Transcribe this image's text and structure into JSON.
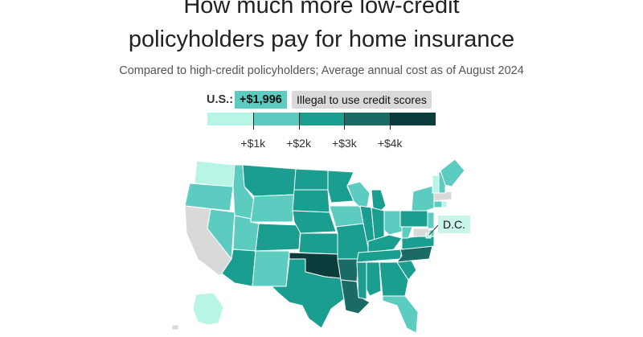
{
  "title_line1": "How much more low-credit",
  "title_line2": "policyholders pay for home insurance",
  "subtitle": "Compared to high-credit policyholders; Average annual cost as of August 2024",
  "us_label": "U.S.:",
  "us_value": "+$1,996",
  "illegal_label": "Illegal to use credit scores",
  "dc_label": "D.C.",
  "colors": {
    "scale": [
      "#b8f5e6",
      "#5ccbc0",
      "#1a9e90",
      "#1a6b66",
      "#0d3c3c"
    ],
    "illegal": "#d9d9d9",
    "border": "#ffffff"
  },
  "scale_ticks": [
    {
      "label": "+$1k",
      "value": 1000
    },
    {
      "label": "+$2k",
      "value": 2000
    },
    {
      "label": "+$3k",
      "value": 3000
    },
    {
      "label": "+$4k",
      "value": 4000
    }
  ],
  "chart_data": {
    "type": "choropleth",
    "title": "How much more low-credit policyholders pay for home insurance",
    "subtitle": "Compared to high-credit policyholders; Average annual cost as of August 2024",
    "national_value": "+$1,996",
    "legend_bins": [
      "< +$1k",
      "+$1k – +$2k",
      "+$2k – +$3k",
      "+$3k – +$4k",
      "> +$4k",
      "Illegal to use credit scores"
    ],
    "regions": [
      {
        "state": "WA",
        "bin": 0
      },
      {
        "state": "OR",
        "bin": 1
      },
      {
        "state": "CA",
        "bin": "illegal"
      },
      {
        "state": "NV",
        "bin": 1
      },
      {
        "state": "ID",
        "bin": 1
      },
      {
        "state": "MT",
        "bin": 2
      },
      {
        "state": "WY",
        "bin": 1
      },
      {
        "state": "UT",
        "bin": 1
      },
      {
        "state": "AZ",
        "bin": 2
      },
      {
        "state": "CO",
        "bin": 2
      },
      {
        "state": "NM",
        "bin": 1
      },
      {
        "state": "ND",
        "bin": 2
      },
      {
        "state": "SD",
        "bin": 2
      },
      {
        "state": "NE",
        "bin": 2
      },
      {
        "state": "KS",
        "bin": 2
      },
      {
        "state": "OK",
        "bin": 4
      },
      {
        "state": "TX",
        "bin": 2
      },
      {
        "state": "MN",
        "bin": 2
      },
      {
        "state": "IA",
        "bin": 1
      },
      {
        "state": "MO",
        "bin": 2
      },
      {
        "state": "AR",
        "bin": 3
      },
      {
        "state": "LA",
        "bin": 3
      },
      {
        "state": "WI",
        "bin": 1
      },
      {
        "state": "IL",
        "bin": 2
      },
      {
        "state": "MI",
        "bin": 2
      },
      {
        "state": "IN",
        "bin": 2
      },
      {
        "state": "OH",
        "bin": 1
      },
      {
        "state": "KY",
        "bin": 2
      },
      {
        "state": "TN",
        "bin": 2
      },
      {
        "state": "MS",
        "bin": 2
      },
      {
        "state": "AL",
        "bin": 2
      },
      {
        "state": "GA",
        "bin": 2
      },
      {
        "state": "FL",
        "bin": 1
      },
      {
        "state": "SC",
        "bin": 2
      },
      {
        "state": "NC",
        "bin": 3
      },
      {
        "state": "VA",
        "bin": 2
      },
      {
        "state": "WV",
        "bin": 1
      },
      {
        "state": "PA",
        "bin": 2
      },
      {
        "state": "NY",
        "bin": 1
      },
      {
        "state": "NJ",
        "bin": 1
      },
      {
        "state": "DE",
        "bin": 1
      },
      {
        "state": "MD",
        "bin": "illegal"
      },
      {
        "state": "DC",
        "bin": 0
      },
      {
        "state": "CT",
        "bin": 1
      },
      {
        "state": "RI",
        "bin": 0
      },
      {
        "state": "MA",
        "bin": "illegal"
      },
      {
        "state": "VT",
        "bin": 0
      },
      {
        "state": "NH",
        "bin": 1
      },
      {
        "state": "ME",
        "bin": 1
      },
      {
        "state": "AK",
        "bin": 0
      },
      {
        "state": "HI",
        "bin": "illegal"
      }
    ]
  }
}
